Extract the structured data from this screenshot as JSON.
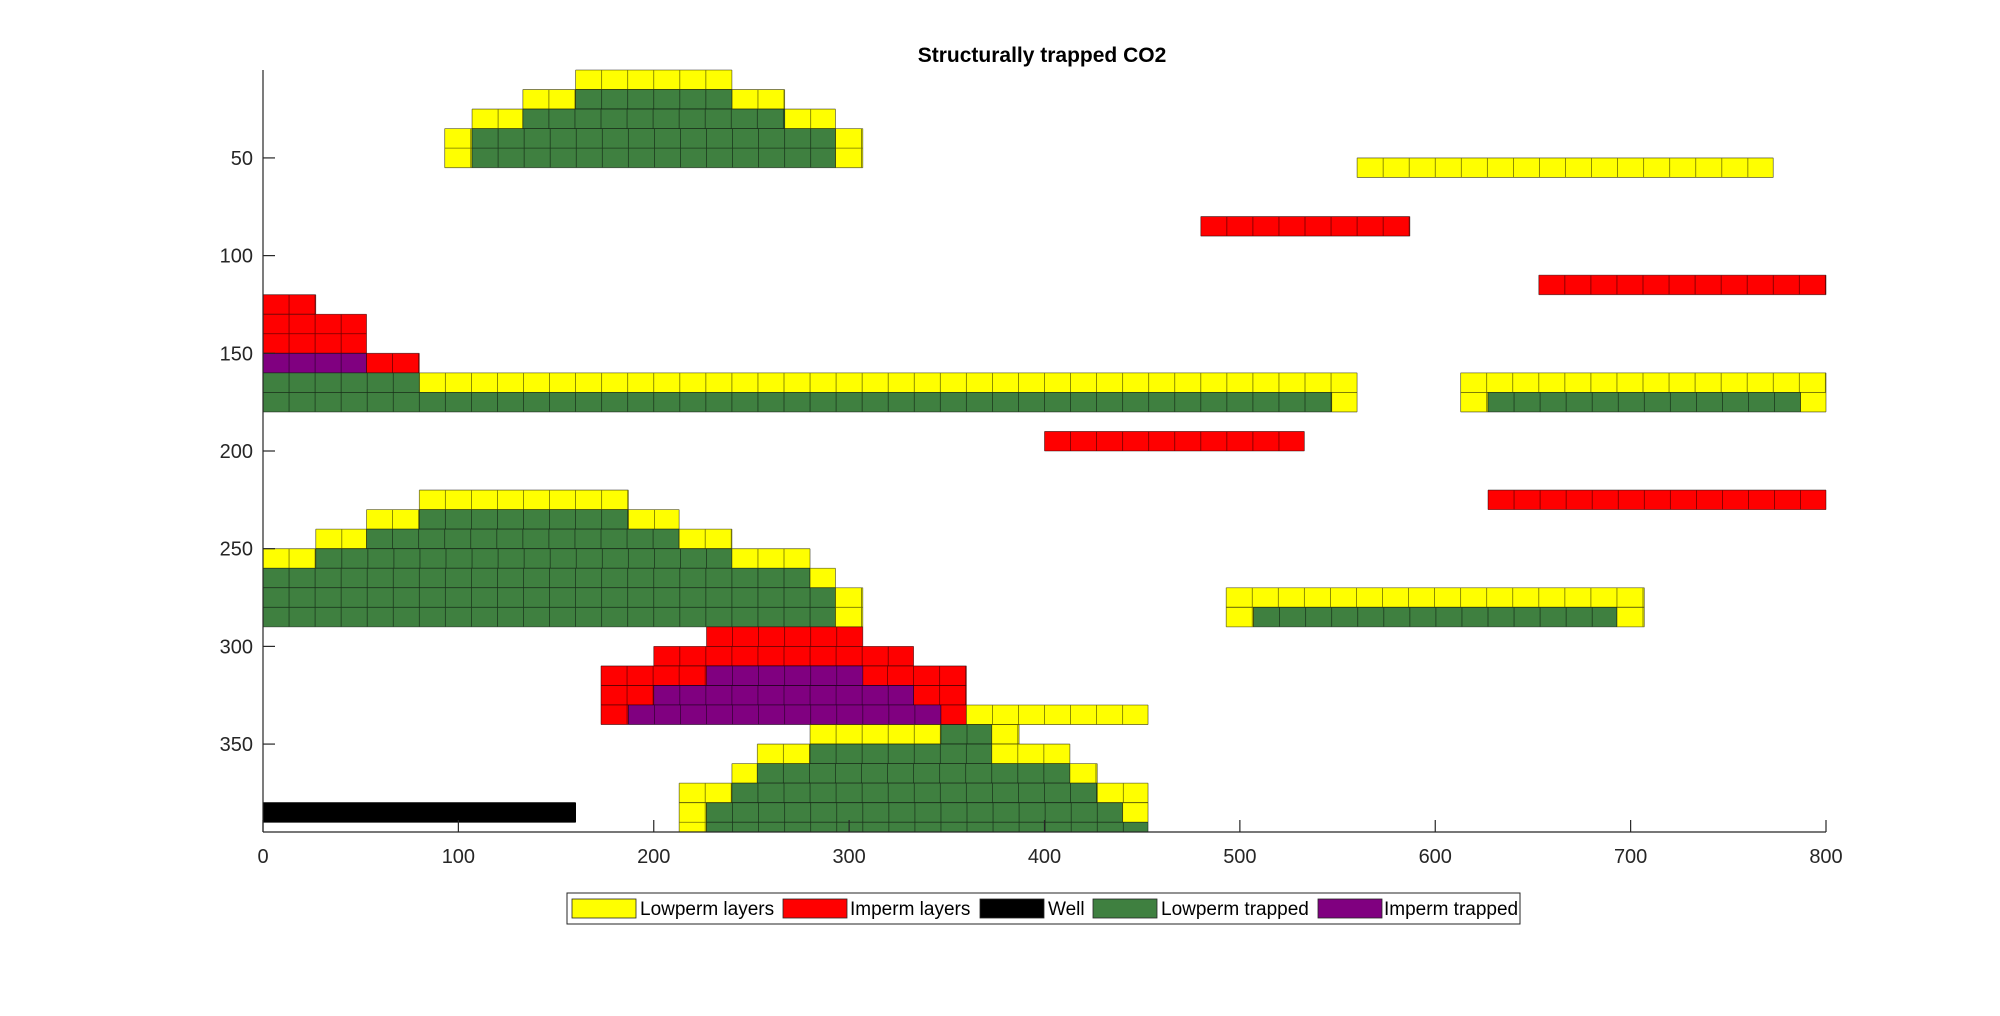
{
  "colors": {
    "Lowperm layers": "#ffff00",
    "Imperm layers": "#ff0000",
    "Well": "#000000",
    "Lowperm trapped": "#3f8040",
    "Imperm trapped": "#800080"
  },
  "chart_data": {
    "type": "heatmap",
    "title": "Structurally trapped CO2",
    "xlabel": "",
    "ylabel": "",
    "xlim": [
      0,
      800
    ],
    "ylim": [
      395,
      5
    ],
    "y_reversed": true,
    "xticks": [
      0,
      100,
      200,
      300,
      400,
      500,
      600,
      700,
      800
    ],
    "yticks": [
      50,
      100,
      150,
      200,
      250,
      300,
      350
    ],
    "grid": false,
    "legend_position": "bottom-center",
    "legend": [
      {
        "label": "Lowperm layers"
      },
      {
        "label": "Imperm layers"
      },
      {
        "label": "Well"
      },
      {
        "label": "Lowperm trapped"
      },
      {
        "label": "Imperm trapped"
      }
    ],
    "cells": [
      {
        "cat": "Lowperm layers",
        "x": [
          160,
          240
        ],
        "y": [
          5,
          15
        ]
      },
      {
        "cat": "Lowperm layers",
        "x": [
          133,
          160
        ],
        "y": [
          15,
          25
        ]
      },
      {
        "cat": "Lowperm layers",
        "x": [
          240,
          267
        ],
        "y": [
          15,
          25
        ]
      },
      {
        "cat": "Lowperm layers",
        "x": [
          107,
          133
        ],
        "y": [
          25,
          35
        ]
      },
      {
        "cat": "Lowperm layers",
        "x": [
          267,
          293
        ],
        "y": [
          25,
          35
        ]
      },
      {
        "cat": "Lowperm layers",
        "x": [
          93,
          107
        ],
        "y": [
          35,
          55
        ]
      },
      {
        "cat": "Lowperm layers",
        "x": [
          293,
          307
        ],
        "y": [
          35,
          55
        ]
      },
      {
        "cat": "Lowperm trapped",
        "x": [
          160,
          240
        ],
        "y": [
          15,
          25
        ]
      },
      {
        "cat": "Lowperm trapped",
        "x": [
          133,
          267
        ],
        "y": [
          25,
          35
        ]
      },
      {
        "cat": "Lowperm trapped",
        "x": [
          107,
          293
        ],
        "y": [
          35,
          55
        ]
      },
      {
        "cat": "Lowperm layers",
        "x": [
          560,
          773
        ],
        "y": [
          50,
          60
        ]
      },
      {
        "cat": "Imperm layers",
        "x": [
          480,
          587
        ],
        "y": [
          80,
          90
        ]
      },
      {
        "cat": "Imperm layers",
        "x": [
          653,
          800
        ],
        "y": [
          110,
          120
        ]
      },
      {
        "cat": "Imperm layers",
        "x": [
          0,
          27
        ],
        "y": [
          120,
          130
        ]
      },
      {
        "cat": "Imperm layers",
        "x": [
          0,
          53
        ],
        "y": [
          130,
          150
        ]
      },
      {
        "cat": "Imperm trapped",
        "x": [
          0,
          53
        ],
        "y": [
          150,
          160
        ]
      },
      {
        "cat": "Imperm layers",
        "x": [
          53,
          80
        ],
        "y": [
          150,
          160
        ]
      },
      {
        "cat": "Lowperm layers",
        "x": [
          80,
          560
        ],
        "y": [
          160,
          170
        ]
      },
      {
        "cat": "Lowperm trapped",
        "x": [
          0,
          80
        ],
        "y": [
          160,
          170
        ]
      },
      {
        "cat": "Lowperm trapped",
        "x": [
          0,
          547
        ],
        "y": [
          170,
          180
        ]
      },
      {
        "cat": "Lowperm layers",
        "x": [
          547,
          560
        ],
        "y": [
          170,
          180
        ]
      },
      {
        "cat": "Lowperm layers",
        "x": [
          613,
          800
        ],
        "y": [
          160,
          170
        ]
      },
      {
        "cat": "Lowperm layers",
        "x": [
          613,
          627
        ],
        "y": [
          170,
          180
        ]
      },
      {
        "cat": "Lowperm trapped",
        "x": [
          627,
          787
        ],
        "y": [
          170,
          180
        ]
      },
      {
        "cat": "Lowperm layers",
        "x": [
          787,
          800
        ],
        "y": [
          170,
          180
        ]
      },
      {
        "cat": "Imperm layers",
        "x": [
          400,
          533
        ],
        "y": [
          190,
          200
        ]
      },
      {
        "cat": "Lowperm layers",
        "x": [
          80,
          187
        ],
        "y": [
          220,
          230
        ]
      },
      {
        "cat": "Imperm layers",
        "x": [
          627,
          800
        ],
        "y": [
          220,
          230
        ]
      },
      {
        "cat": "Lowperm layers",
        "x": [
          53,
          80
        ],
        "y": [
          230,
          240
        ]
      },
      {
        "cat": "Lowperm trapped",
        "x": [
          80,
          187
        ],
        "y": [
          230,
          240
        ]
      },
      {
        "cat": "Lowperm layers",
        "x": [
          187,
          213
        ],
        "y": [
          230,
          240
        ]
      },
      {
        "cat": "Lowperm layers",
        "x": [
          27,
          53
        ],
        "y": [
          240,
          250
        ]
      },
      {
        "cat": "Lowperm trapped",
        "x": [
          53,
          213
        ],
        "y": [
          240,
          250
        ]
      },
      {
        "cat": "Lowperm layers",
        "x": [
          213,
          240
        ],
        "y": [
          240,
          250
        ]
      },
      {
        "cat": "Lowperm layers",
        "x": [
          0,
          27
        ],
        "y": [
          250,
          260
        ]
      },
      {
        "cat": "Lowperm trapped",
        "x": [
          27,
          240
        ],
        "y": [
          250,
          260
        ]
      },
      {
        "cat": "Lowperm layers",
        "x": [
          240,
          280
        ],
        "y": [
          250,
          260
        ]
      },
      {
        "cat": "Lowperm trapped",
        "x": [
          0,
          280
        ],
        "y": [
          260,
          270
        ]
      },
      {
        "cat": "Lowperm layers",
        "x": [
          280,
          293
        ],
        "y": [
          260,
          270
        ]
      },
      {
        "cat": "Lowperm trapped",
        "x": [
          0,
          293
        ],
        "y": [
          270,
          290
        ]
      },
      {
        "cat": "Lowperm layers",
        "x": [
          293,
          307
        ],
        "y": [
          270,
          290
        ]
      },
      {
        "cat": "Lowperm layers",
        "x": [
          493,
          707
        ],
        "y": [
          270,
          280
        ]
      },
      {
        "cat": "Lowperm layers",
        "x": [
          493,
          507
        ],
        "y": [
          280,
          290
        ]
      },
      {
        "cat": "Lowperm trapped",
        "x": [
          507,
          693
        ],
        "y": [
          280,
          290
        ]
      },
      {
        "cat": "Lowperm layers",
        "x": [
          693,
          707
        ],
        "y": [
          280,
          290
        ]
      },
      {
        "cat": "Imperm layers",
        "x": [
          227,
          307
        ],
        "y": [
          290,
          300
        ]
      },
      {
        "cat": "Imperm layers",
        "x": [
          200,
          333
        ],
        "y": [
          300,
          310
        ]
      },
      {
        "cat": "Imperm layers",
        "x": [
          173,
          360
        ],
        "y": [
          310,
          320
        ]
      },
      {
        "cat": "Imperm trapped",
        "x": [
          227,
          307
        ],
        "y": [
          310,
          320
        ]
      },
      {
        "cat": "Imperm layers",
        "x": [
          173,
          360
        ],
        "y": [
          320,
          330
        ]
      },
      {
        "cat": "Imperm trapped",
        "x": [
          200,
          333
        ],
        "y": [
          320,
          330
        ]
      },
      {
        "cat": "Imperm layers",
        "x": [
          173,
          187
        ],
        "y": [
          330,
          340
        ]
      },
      {
        "cat": "Imperm trapped",
        "x": [
          187,
          347
        ],
        "y": [
          330,
          340
        ]
      },
      {
        "cat": "Imperm layers",
        "x": [
          347,
          360
        ],
        "y": [
          330,
          340
        ]
      },
      {
        "cat": "Lowperm layers",
        "x": [
          360,
          453
        ],
        "y": [
          330,
          340
        ]
      },
      {
        "cat": "Lowperm layers",
        "x": [
          280,
          347
        ],
        "y": [
          340,
          350
        ]
      },
      {
        "cat": "Lowperm trapped",
        "x": [
          347,
          373
        ],
        "y": [
          340,
          350
        ]
      },
      {
        "cat": "Lowperm layers",
        "x": [
          373,
          387
        ],
        "y": [
          340,
          350
        ]
      },
      {
        "cat": "Lowperm layers",
        "x": [
          253,
          280
        ],
        "y": [
          350,
          360
        ]
      },
      {
        "cat": "Lowperm trapped",
        "x": [
          280,
          373
        ],
        "y": [
          350,
          360
        ]
      },
      {
        "cat": "Lowperm layers",
        "x": [
          373,
          413
        ],
        "y": [
          350,
          360
        ]
      },
      {
        "cat": "Lowperm layers",
        "x": [
          240,
          253
        ],
        "y": [
          360,
          370
        ]
      },
      {
        "cat": "Lowperm trapped",
        "x": [
          253,
          413
        ],
        "y": [
          360,
          370
        ]
      },
      {
        "cat": "Lowperm layers",
        "x": [
          413,
          427
        ],
        "y": [
          360,
          370
        ]
      },
      {
        "cat": "Lowperm layers",
        "x": [
          213,
          240
        ],
        "y": [
          370,
          380
        ]
      },
      {
        "cat": "Lowperm trapped",
        "x": [
          240,
          427
        ],
        "y": [
          370,
          380
        ]
      },
      {
        "cat": "Lowperm layers",
        "x": [
          427,
          453
        ],
        "y": [
          370,
          380
        ]
      },
      {
        "cat": "Lowperm layers",
        "x": [
          213,
          227
        ],
        "y": [
          380,
          395
        ]
      },
      {
        "cat": "Lowperm trapped",
        "x": [
          227,
          440
        ],
        "y": [
          380,
          390
        ]
      },
      {
        "cat": "Lowperm layers",
        "x": [
          440,
          453
        ],
        "y": [
          380,
          390
        ]
      },
      {
        "cat": "Lowperm trapped",
        "x": [
          227,
          453
        ],
        "y": [
          390,
          395
        ]
      },
      {
        "cat": "Well",
        "x": [
          0,
          160
        ],
        "y": [
          380,
          390
        ]
      }
    ]
  }
}
